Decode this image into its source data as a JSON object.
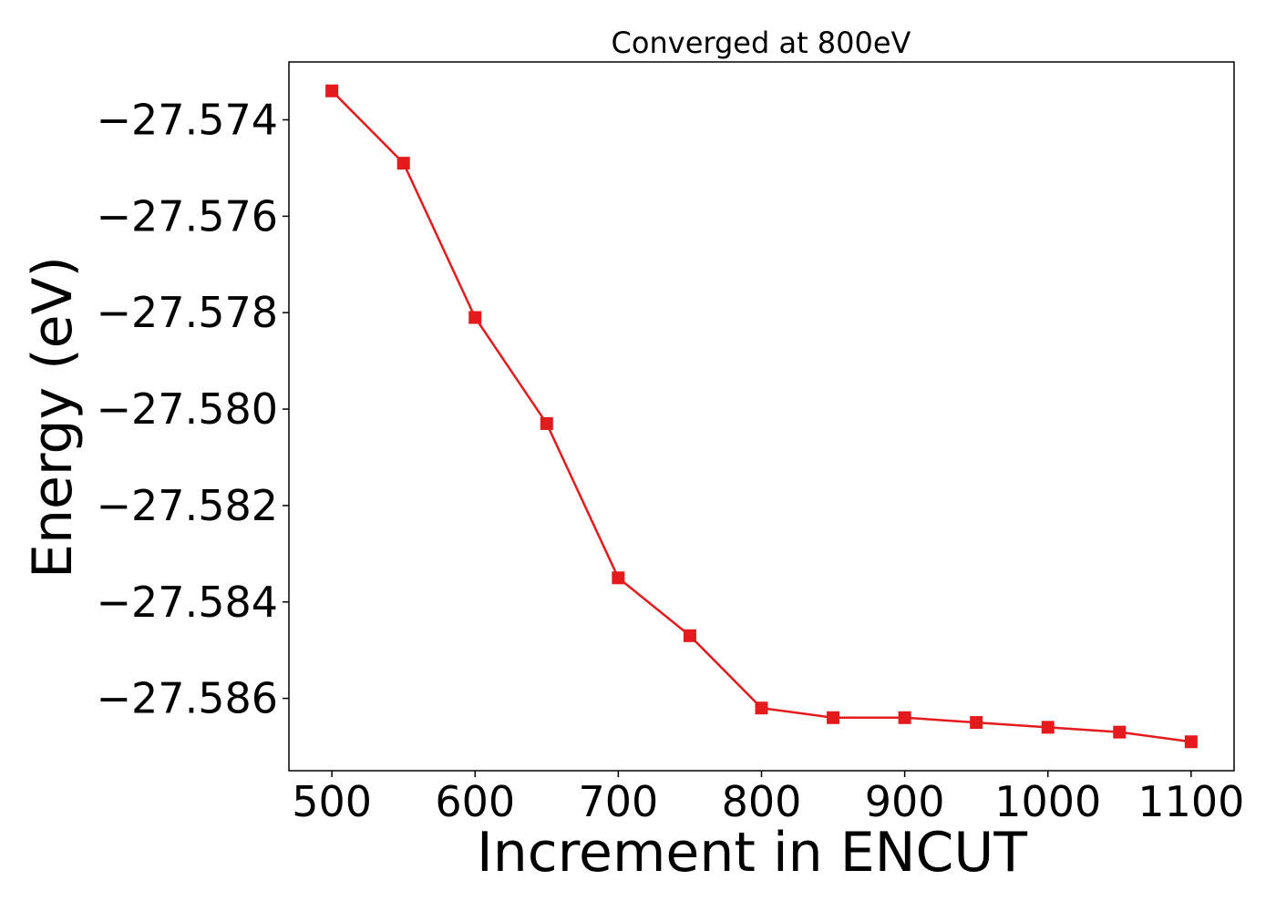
{
  "chart_data": {
    "type": "line",
    "title": "Converged at 800eV",
    "xlabel": "Increment in ENCUT",
    "ylabel": "Energy (eV)",
    "x": [
      500,
      550,
      600,
      650,
      700,
      750,
      800,
      850,
      900,
      950,
      1000,
      1050,
      1100
    ],
    "series": [
      {
        "values": [
          -27.5734,
          -27.5749,
          -27.5781,
          -27.5803,
          -27.5835,
          -27.5847,
          -27.5862,
          -27.5864,
          -27.5864,
          -27.5865,
          -27.5866,
          -27.5867,
          -27.5869
        ],
        "color": "#e41a1c",
        "marker": "square"
      }
    ],
    "xticks": [
      500,
      600,
      700,
      800,
      900,
      1000,
      1100
    ],
    "xtick_labels": [
      "500",
      "600",
      "700",
      "800",
      "900",
      "1000",
      "1100"
    ],
    "yticks": [
      -27.574,
      -27.576,
      -27.578,
      -27.58,
      -27.582,
      -27.584,
      -27.586
    ],
    "ytick_labels": [
      "−27.574",
      "−27.576",
      "−27.578",
      "−27.580",
      "−27.582",
      "−27.584",
      "−27.586"
    ],
    "xlim": [
      470,
      1130
    ],
    "ylim": [
      -27.5875,
      -27.5728
    ],
    "grid": false
  }
}
